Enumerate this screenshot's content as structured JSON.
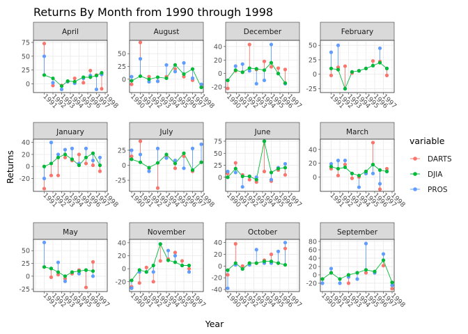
{
  "chart_data": {
    "type": "line",
    "title": "Returns By Month from 1990 through 1998",
    "xlabel": "Year",
    "ylabel": "Returns",
    "legend": {
      "title": "variable",
      "placement": "right",
      "entries": [
        {
          "name": "DARTS",
          "color": "#F8766D"
        },
        {
          "name": "DJIA",
          "color": "#00BA38"
        },
        {
          "name": "PROS",
          "color": "#619CFF"
        }
      ]
    },
    "grid": true,
    "xlim": [
      1990,
      1998
    ],
    "x_ticks": [
      "1990",
      "1991",
      "1992",
      "1993",
      "1994",
      "1995",
      "1996",
      "1997",
      "1998"
    ],
    "panels": [
      {
        "name": "April",
        "ylim": [
          -12,
          75
        ],
        "y_ticks": [
          0,
          25,
          50,
          75
        ],
        "x_ticks": [
          "1991",
          "1992",
          "1993",
          "1994",
          "1995",
          "1996",
          "1997",
          "1998"
        ],
        "points": [
          {
            "x": 1991,
            "DARTS": 73,
            "DJIA": 16,
            "PROS": 50
          },
          {
            "x": 1992,
            "DARTS": -3,
            "DJIA": 10,
            "PROS": 2
          },
          {
            "x": 1993,
            "DARTS": -3,
            "DJIA": -4,
            "PROS": -10
          },
          {
            "x": 1993.7,
            "DARTS": 4,
            "DJIA": 5,
            "PROS": 4
          },
          {
            "x": 1994.5,
            "DARTS": 10,
            "DJIA": 4,
            "PROS": 1
          },
          {
            "x": 1995.5,
            "DARTS": 2,
            "DJIA": 12,
            "PROS": 10
          },
          {
            "x": 1996.3,
            "DARTS": 24,
            "DJIA": 12,
            "PROS": 15
          },
          {
            "x": 1997,
            "DARTS": 16,
            "DJIA": 15,
            "PROS": -10
          },
          {
            "x": 1997.6,
            "DARTS": -9,
            "DJIA": 20,
            "PROS": 17
          }
        ]
      },
      {
        "name": "August",
        "ylim": [
          -22,
          72
        ],
        "y_ticks": [
          -25,
          0,
          25,
          50,
          75
        ],
        "x_ticks": [
          "1990",
          "1991",
          "1992",
          "1993",
          "1994",
          "1995",
          "1996",
          "1997",
          "1998"
        ],
        "points": [
          {
            "x": 1990,
            "DARTS": -10,
            "DJIA": -3,
            "PROS": 5
          },
          {
            "x": 1991,
            "DARTS": 72,
            "DJIA": 6,
            "PROS": 40
          },
          {
            "x": 1992,
            "DARTS": 5,
            "DJIA": 0,
            "PROS": -5
          },
          {
            "x": 1993,
            "DARTS": -4,
            "DJIA": 4,
            "PROS": -4
          },
          {
            "x": 1994,
            "DARTS": 5,
            "DJIA": 2,
            "PROS": 28
          },
          {
            "x": 1995,
            "DARTS": 20,
            "DJIA": 28,
            "PROS": 15
          },
          {
            "x": 1996,
            "DARTS": 5,
            "DJIA": 10,
            "PROS": 32
          },
          {
            "x": 1997,
            "DARTS": -2,
            "DJIA": 20,
            "PROS": 2
          },
          {
            "x": 1998,
            "DARTS": -15,
            "DJIA": -16,
            "PROS": -10
          }
        ]
      },
      {
        "name": "December",
        "ylim": [
          -25,
          46
        ],
        "y_ticks": [
          -20,
          0,
          20,
          40
        ],
        "x_ticks": [
          "1990",
          "1991",
          "1992",
          "1993",
          "1994",
          "1995",
          "1996",
          "1997"
        ],
        "points": [
          {
            "x": 1990,
            "DARTS": -22,
            "DJIA": -10,
            "PROS": -10
          },
          {
            "x": 1990.9,
            "DARTS": 4,
            "DJIA": 5,
            "PROS": 11
          },
          {
            "x": 1991.7,
            "DARTS": 2,
            "DJIA": 2,
            "PROS": 14
          },
          {
            "x": 1992.5,
            "DARTS": 43,
            "DJIA": 8,
            "PROS": 4
          },
          {
            "x": 1993.3,
            "DARTS": 6,
            "DJIA": 7,
            "PROS": -15
          },
          {
            "x": 1994.2,
            "DARTS": 18,
            "DJIA": 5,
            "PROS": -10
          },
          {
            "x": 1995,
            "DARTS": 10,
            "DJIA": 16,
            "PROS": 43
          },
          {
            "x": 1995.8,
            "DARTS": 8,
            "DJIA": 0,
            "PROS": 0
          },
          {
            "x": 1996.6,
            "DARTS": 6,
            "DJIA": -14,
            "PROS": -15
          }
        ]
      },
      {
        "name": "February",
        "ylim": [
          -28,
          55
        ],
        "y_ticks": [
          -25,
          0,
          25,
          50
        ],
        "x_ticks": [
          "1991",
          "1992",
          "1993",
          "1994",
          "1995",
          "1996",
          "1997"
        ],
        "points": [
          {
            "x": 1991,
            "DARTS": -2,
            "DJIA": 10,
            "PROS": 38
          },
          {
            "x": 1991.8,
            "DARTS": 12,
            "DJIA": 8,
            "PROS": 50
          },
          {
            "x": 1992.6,
            "DARTS": 14,
            "DJIA": -25,
            "PROS": -25
          },
          {
            "x": 1993.4,
            "DARTS": 2,
            "DJIA": 4,
            "PROS": 4
          },
          {
            "x": 1994.2,
            "DARTS": 6,
            "DJIA": 6,
            "PROS": 6
          },
          {
            "x": 1995,
            "DARTS": 10,
            "DJIA": 10,
            "PROS": 10
          },
          {
            "x": 1995.8,
            "DARTS": 23,
            "DJIA": 15,
            "PROS": 15
          },
          {
            "x": 1996.6,
            "DARTS": 22,
            "DJIA": 20,
            "PROS": 45
          },
          {
            "x": 1997.4,
            "DARTS": -2,
            "DJIA": 10,
            "PROS": 10
          }
        ]
      },
      {
        "name": "January",
        "ylim": [
          -38,
          42
        ],
        "y_ticks": [
          -40,
          -20,
          0,
          20,
          40
        ],
        "x_ticks": [
          "1991",
          "1992",
          "1993",
          "1994",
          "1995",
          "1996",
          "1997",
          "1998"
        ],
        "points": [
          {
            "x": 1991,
            "DARTS": -37,
            "DJIA": 0,
            "PROS": -20
          },
          {
            "x": 1991.8,
            "DARTS": -15,
            "DJIA": 5,
            "PROS": 40
          },
          {
            "x": 1992.6,
            "DARTS": -15,
            "DJIA": 15,
            "PROS": 20
          },
          {
            "x": 1993.4,
            "DARTS": 15,
            "DJIA": 20,
            "PROS": 28
          },
          {
            "x": 1994.2,
            "DARTS": 10,
            "DJIA": 12,
            "PROS": 30
          },
          {
            "x": 1995,
            "DARTS": 20,
            "DJIA": 2,
            "PROS": 5
          },
          {
            "x": 1995.8,
            "DARTS": 5,
            "DJIA": 15,
            "PROS": 30
          },
          {
            "x": 1996.6,
            "DARTS": 2,
            "DJIA": 22,
            "PROS": 10
          },
          {
            "x": 1997.4,
            "DARTS": -8,
            "DJIA": 2,
            "PROS": 15
          }
        ]
      },
      {
        "name": "July",
        "ylim": [
          -40,
          40
        ],
        "y_ticks": [
          -25,
          0,
          25
        ],
        "x_ticks": [
          "1990",
          "1991",
          "1992",
          "1993",
          "1994",
          "1995",
          "1996",
          "1997",
          "1998"
        ],
        "points": [
          {
            "x": 1990,
            "DARTS": 15,
            "DJIA": 10,
            "PROS": 25
          },
          {
            "x": 1991,
            "DARTS": 40,
            "DJIA": 5,
            "PROS": 18
          },
          {
            "x": 1992,
            "DARTS": -5,
            "DJIA": -4,
            "PROS": -10
          },
          {
            "x": 1993,
            "DARTS": -38,
            "DJIA": 4,
            "PROS": 28
          },
          {
            "x": 1994,
            "DARTS": 15,
            "DJIA": 18,
            "PROS": 12
          },
          {
            "x": 1995,
            "DARTS": -5,
            "DJIA": 3,
            "PROS": 8
          },
          {
            "x": 1996,
            "DARTS": 15,
            "DJIA": 20,
            "PROS": -5
          },
          {
            "x": 1997,
            "DARTS": -10,
            "DJIA": -8,
            "PROS": 28
          },
          {
            "x": 1998,
            "DARTS": 5,
            "DJIA": 5,
            "PROS": 35
          }
        ]
      },
      {
        "name": "June",
        "ylim": [
          -25,
          75
        ],
        "y_ticks": [
          0,
          25,
          50,
          75
        ],
        "x_ticks": [
          "1990",
          "1991",
          "1992",
          "1993",
          "1994",
          "1995",
          "1996",
          "1997"
        ],
        "points": [
          {
            "x": 1990,
            "DARTS": 8,
            "DJIA": 0,
            "PROS": 12
          },
          {
            "x": 1990.9,
            "DARTS": 30,
            "DJIA": 18,
            "PROS": 10
          },
          {
            "x": 1991.7,
            "DARTS": 5,
            "DJIA": 2,
            "PROS": -20
          },
          {
            "x": 1992.5,
            "DARTS": -5,
            "DJIA": 2,
            "PROS": 2
          },
          {
            "x": 1993.3,
            "DARTS": -10,
            "DJIA": -5,
            "PROS": 0
          },
          {
            "x": 1994.2,
            "DARTS": 12,
            "DJIA": 75,
            "PROS": 75
          },
          {
            "x": 1995,
            "DARTS": -8,
            "DJIA": 10,
            "PROS": -5
          },
          {
            "x": 1995.8,
            "DARTS": 15,
            "DJIA": 18,
            "PROS": 20
          },
          {
            "x": 1996.6,
            "DARTS": 5,
            "DJIA": 20,
            "PROS": 28
          }
        ]
      },
      {
        "name": "March",
        "ylim": [
          -18,
          52
        ],
        "y_ticks": [
          0,
          20,
          40
        ],
        "x_ticks": [
          "1991",
          "1992",
          "1993",
          "1994",
          "1995",
          "1996",
          "1997",
          "1998"
        ],
        "points": [
          {
            "x": 1991,
            "DARTS": 12,
            "DJIA": 15,
            "PROS": 19
          },
          {
            "x": 1991.8,
            "DARTS": 2,
            "DJIA": 12,
            "PROS": 24
          },
          {
            "x": 1992.6,
            "DARTS": 18,
            "DJIA": 14,
            "PROS": 24
          },
          {
            "x": 1993.4,
            "DARTS": -2,
            "DJIA": 5,
            "PROS": 5
          },
          {
            "x": 1994.2,
            "DARTS": 0,
            "DJIA": 2,
            "PROS": -15
          },
          {
            "x": 1995,
            "DARTS": 5,
            "DJIA": 8,
            "PROS": 5
          },
          {
            "x": 1995.8,
            "DARTS": 50,
            "DJIA": 18,
            "PROS": 5
          },
          {
            "x": 1996.6,
            "DARTS": -18,
            "DJIA": 10,
            "PROS": -10
          },
          {
            "x": 1997.4,
            "DARTS": 12,
            "DJIA": 8,
            "PROS": 8
          }
        ]
      },
      {
        "name": "May",
        "ylim": [
          -26,
          68
        ],
        "y_ticks": [
          -25,
          0,
          25,
          50
        ],
        "x_ticks": [
          "1991",
          "1992",
          "1993",
          "1994",
          "1995",
          "1996",
          "1997"
        ],
        "points": [
          {
            "x": 1991,
            "DARTS": 18,
            "DJIA": 18,
            "PROS": 66
          },
          {
            "x": 1991.8,
            "DARTS": -2,
            "DJIA": 15,
            "PROS": 15
          },
          {
            "x": 1992.6,
            "DARTS": 3,
            "DJIA": 8,
            "PROS": 27
          },
          {
            "x": 1993.4,
            "DARTS": -5,
            "DJIA": 0,
            "PROS": -10
          },
          {
            "x": 1994.2,
            "DARTS": 5,
            "DJIA": 8,
            "PROS": 8
          },
          {
            "x": 1995,
            "DARTS": 12,
            "DJIA": 10,
            "PROS": 5
          },
          {
            "x": 1995.8,
            "DARTS": -22,
            "DJIA": 12,
            "PROS": 12
          },
          {
            "x": 1996.6,
            "DARTS": 28,
            "DJIA": 10,
            "PROS": 0
          }
        ]
      },
      {
        "name": "November",
        "ylim": [
          -32,
          42
        ],
        "y_ticks": [
          -20,
          0,
          20,
          40
        ],
        "x_ticks": [
          "1990",
          "1991",
          "1992",
          "1993",
          "1994",
          "1995",
          "1996",
          "1997"
        ],
        "points": [
          {
            "x": 1990,
            "DARTS": -28,
            "DJIA": -18,
            "PROS": -30
          },
          {
            "x": 1990.9,
            "DARTS": -22,
            "DJIA": -2,
            "PROS": -5
          },
          {
            "x": 1991.7,
            "DARTS": 2,
            "DJIA": -5,
            "PROS": -5
          },
          {
            "x": 1992.5,
            "DARTS": -20,
            "DJIA": 5,
            "PROS": -5
          },
          {
            "x": 1993.3,
            "DARTS": 12,
            "DJIA": 38,
            "PROS": 38
          },
          {
            "x": 1994.2,
            "DARTS": 15,
            "DJIA": 13,
            "PROS": 28
          },
          {
            "x": 1995,
            "DARTS": 25,
            "DJIA": 10,
            "PROS": 20
          },
          {
            "x": 1995.8,
            "DARTS": 12,
            "DJIA": 5,
            "PROS": 5
          },
          {
            "x": 1996.6,
            "DARTS": 0,
            "DJIA": 5,
            "PROS": -5
          }
        ]
      },
      {
        "name": "October",
        "ylim": [
          -40,
          42
        ],
        "y_ticks": [
          -40,
          -20,
          0,
          20,
          40
        ],
        "x_ticks": [
          "1990",
          "1991",
          "1992",
          "1993",
          "1994",
          "1995",
          "1996",
          "1997"
        ],
        "points": [
          {
            "x": 1990,
            "DARTS": -15,
            "DJIA": -7,
            "PROS": -38
          },
          {
            "x": 1990.9,
            "DARTS": 38,
            "DJIA": 5,
            "PROS": 2
          },
          {
            "x": 1991.7,
            "DARTS": 0,
            "DJIA": -5,
            "PROS": -5
          },
          {
            "x": 1992.5,
            "DARTS": 5,
            "DJIA": 5,
            "PROS": 2
          },
          {
            "x": 1993.3,
            "DARTS": 5,
            "DJIA": 5,
            "PROS": 28
          },
          {
            "x": 1994.2,
            "DARTS": 10,
            "DJIA": 8,
            "PROS": 5
          },
          {
            "x": 1995,
            "DARTS": 20,
            "DJIA": 8,
            "PROS": 5
          },
          {
            "x": 1995.8,
            "DARTS": 5,
            "DJIA": 5,
            "PROS": 25
          },
          {
            "x": 1996.6,
            "DARTS": 30,
            "DJIA": 2,
            "PROS": 40
          }
        ]
      },
      {
        "name": "September",
        "ylim": [
          -35,
          80
        ],
        "y_ticks": [
          -20,
          0,
          20,
          40,
          60,
          80
        ],
        "x_ticks": [
          "1990",
          "1991",
          "1992",
          "1993",
          "1994",
          "1995",
          "1996",
          "1997",
          "1998"
        ],
        "points": [
          {
            "x": 1990,
            "DARTS": -10,
            "DJIA": -10,
            "PROS": -20
          },
          {
            "x": 1991,
            "DARTS": 5,
            "DJIA": 5,
            "PROS": 15
          },
          {
            "x": 1992,
            "DARTS": -10,
            "DJIA": -10,
            "PROS": -20
          },
          {
            "x": 1993,
            "DARTS": -20,
            "DJIA": 0,
            "PROS": -5
          },
          {
            "x": 1994,
            "DARTS": 5,
            "DJIA": 5,
            "PROS": -10
          },
          {
            "x": 1995,
            "DARTS": 5,
            "DJIA": 12,
            "PROS": 75
          },
          {
            "x": 1996,
            "DARTS": 5,
            "DJIA": 8,
            "PROS": 5
          },
          {
            "x": 1997,
            "DARTS": 22,
            "DJIA": 35,
            "PROS": 50
          },
          {
            "x": 1998,
            "DARTS": -33,
            "DJIA": -18,
            "PROS": -25
          }
        ]
      }
    ]
  }
}
